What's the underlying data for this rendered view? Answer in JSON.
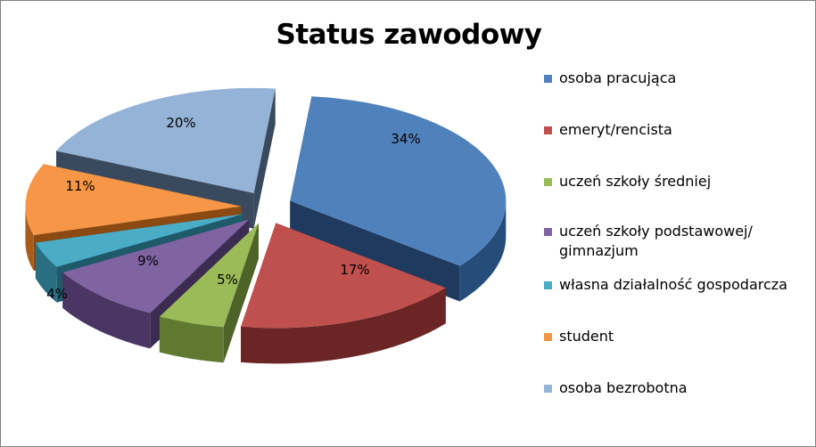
{
  "chart_data": {
    "type": "pie",
    "title": "Status zawodowy",
    "slices": [
      {
        "label": "osoba pracująca",
        "value": 34,
        "value_label": "34%",
        "color": "#4F81BD",
        "dark": "#1F3A5F",
        "side": "#264D7A"
      },
      {
        "label": "emeryt/rencista",
        "value": 17,
        "value_label": "17%",
        "color": "#C0504D",
        "dark": "#5A1E1C",
        "side": "#6B2524"
      },
      {
        "label": "uczeń szkoły średniej",
        "value": 5,
        "value_label": "5%",
        "color": "#9BBB59",
        "dark": "#4E6328",
        "side": "#5F7A30"
      },
      {
        "label": "uczeń szkoły podstawowej/ gimnazjum",
        "value": 9,
        "value_label": "9%",
        "color": "#8064A2",
        "dark": "#3D2C52",
        "side": "#4A3663"
      },
      {
        "label": "własna działalność gospodarcza",
        "value": 4,
        "value_label": "4%",
        "color": "#4BACC6",
        "dark": "#1F5A6B",
        "side": "#2A6E82"
      },
      {
        "label": "student",
        "value": 11,
        "value_label": "11%",
        "color": "#F79646",
        "dark": "#8A4A12",
        "side": "#A85C1B"
      },
      {
        "label": "osoba bezrobotna",
        "value": 20,
        "value_label": "20%",
        "color": "#95B3D7",
        "dark": "#394A5E",
        "side": "#3E5066"
      }
    ],
    "legend_position": "right"
  }
}
